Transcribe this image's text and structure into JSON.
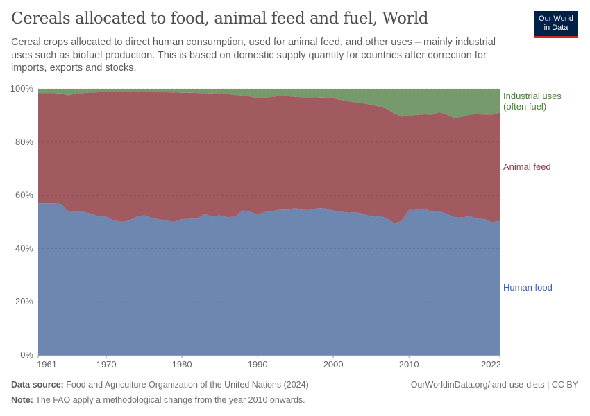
{
  "header": {
    "title": "Cereals allocated to food, animal feed and fuel, World",
    "subtitle": "Cereal crops allocated to direct human consumption, used for animal feed, and other uses – mainly industrial uses such as biofuel production. This is based on domestic supply quantity for countries after correction for imports, exports and stocks.",
    "logo": [
      "Our World",
      "in Data"
    ]
  },
  "chart_data": {
    "type": "area",
    "stacked": true,
    "xlim": [
      1961,
      2022
    ],
    "ylim": [
      0,
      100
    ],
    "y_unit": "%",
    "y_ticks": [
      "0%",
      "20%",
      "40%",
      "60%",
      "80%",
      "100%"
    ],
    "x_ticks": [
      "1961",
      "1970",
      "1980",
      "1990",
      "2000",
      "2010",
      "2022"
    ],
    "grid": "horizontal dashed",
    "legend": "right, inline labels",
    "x": [
      1961,
      1962,
      1963,
      1964,
      1965,
      1966,
      1967,
      1968,
      1969,
      1970,
      1971,
      1972,
      1973,
      1974,
      1975,
      1976,
      1977,
      1978,
      1979,
      1980,
      1981,
      1982,
      1983,
      1984,
      1985,
      1986,
      1987,
      1988,
      1989,
      1990,
      1991,
      1992,
      1993,
      1994,
      1995,
      1996,
      1997,
      1998,
      1999,
      2000,
      2001,
      2002,
      2003,
      2004,
      2005,
      2006,
      2007,
      2008,
      2009,
      2010,
      2011,
      2012,
      2013,
      2014,
      2015,
      2016,
      2017,
      2018,
      2019,
      2020,
      2021,
      2022
    ],
    "series": [
      {
        "name": "Human food",
        "color": "#6d87b0",
        "label_color": "#3c5ea8",
        "values": [
          57,
          57,
          57,
          56.7,
          54,
          54.2,
          53.8,
          53,
          52,
          52,
          50.5,
          50,
          50.5,
          52,
          52.5,
          51.5,
          51,
          50.5,
          50,
          51,
          51.2,
          51.3,
          53,
          52,
          52.5,
          51.8,
          52,
          54.3,
          53.8,
          52.8,
          53.7,
          54,
          54.7,
          54.6,
          55.2,
          54.5,
          54.6,
          55.2,
          55,
          54.3,
          53.8,
          53.5,
          53.6,
          53,
          52,
          52.2,
          51.5,
          49.5,
          50.3,
          54.5,
          54.6,
          55,
          53.8,
          54,
          53,
          51.8,
          51.6,
          52.2,
          51.2,
          51,
          49.8,
          50.5
        ]
      },
      {
        "name": "Animal feed",
        "color": "#a05a60",
        "label_color": "#8a3b44",
        "values": [
          41.3,
          41.3,
          41.3,
          41.5,
          43.5,
          44.1,
          44.6,
          45.6,
          46.7,
          46.7,
          48.2,
          48.8,
          48.3,
          46.8,
          46.3,
          47.3,
          47.8,
          48.2,
          48.6,
          47.5,
          47.3,
          47.1,
          45.3,
          46.2,
          45.6,
          46.2,
          45.7,
          43.1,
          43.3,
          43.6,
          42.9,
          43,
          42.6,
          42.6,
          41.7,
          42.3,
          42.2,
          41.5,
          41.6,
          42.1,
          42,
          41.8,
          41.3,
          41.5,
          42,
          41.2,
          41,
          41.3,
          39.2,
          35.5,
          35.5,
          35.4,
          36.4,
          37.2,
          37.3,
          37.2,
          37.8,
          38.1,
          39.2,
          39.3,
          40.5,
          40.5
        ]
      },
      {
        "name": "Industrial uses (often fuel)",
        "label_lines": [
          "Industrial uses",
          "(often fuel)"
        ],
        "color": "#779a6c",
        "label_color": "#4b7a3a",
        "values": [
          1.7,
          1.7,
          1.7,
          1.8,
          2.5,
          1.7,
          1.6,
          1.4,
          1.3,
          1.3,
          1.3,
          1.2,
          1.2,
          1.2,
          1.2,
          1.2,
          1.2,
          1.3,
          1.4,
          1.5,
          1.5,
          1.6,
          1.7,
          1.8,
          1.9,
          2,
          2.3,
          2.6,
          2.9,
          3.6,
          3.4,
          3,
          2.7,
          2.8,
          3.1,
          3.2,
          3.2,
          3.3,
          3.4,
          3.6,
          4.2,
          4.7,
          5.1,
          5.5,
          6,
          6.6,
          7.5,
          9.2,
          10.5,
          10,
          9.9,
          9.6,
          9.8,
          8.8,
          9.7,
          11,
          10.6,
          9.7,
          9.6,
          9.7,
          9.7,
          9
        ]
      }
    ]
  },
  "footer": {
    "source_label": "Data source:",
    "source": "Food and Agriculture Organization of the United Nations (2024)",
    "note_label": "Note:",
    "note": "The FAO apply a methodological change from the year 2010 onwards.",
    "url": "OurWorldinData.org/land-use-diets | CC BY"
  }
}
